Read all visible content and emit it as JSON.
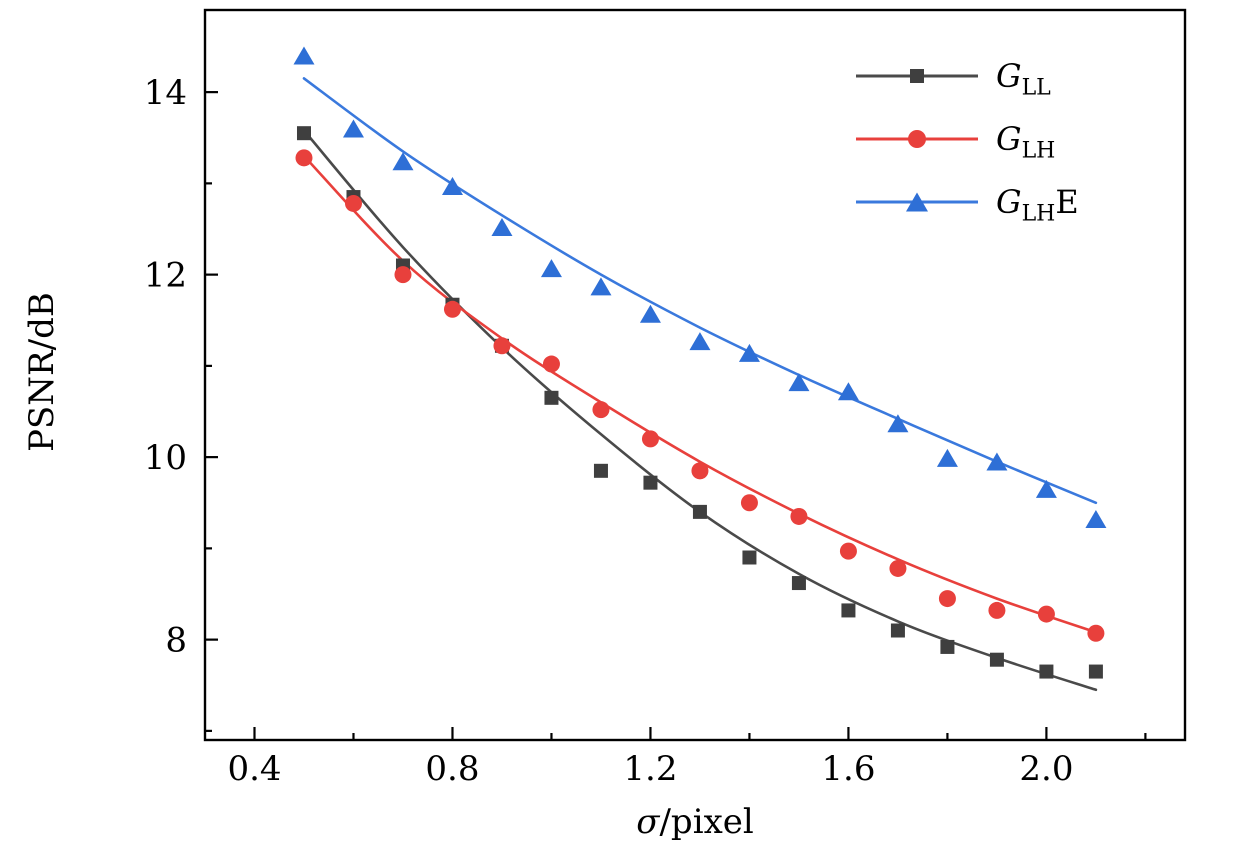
{
  "chart_data": {
    "type": "scatter",
    "title": "",
    "xlabel": "σ/pixel",
    "ylabel": "PSNR/dB",
    "xlabel_parts": {
      "italic": "σ",
      "roman": "/pixel"
    },
    "xlim": [
      0.3,
      2.28
    ],
    "ylim": [
      6.9,
      14.9
    ],
    "grid": false,
    "legend_position": "top-right",
    "axis_color": "#000000",
    "x_major_ticks": [
      0.4,
      0.8,
      1.2,
      1.6,
      2.0
    ],
    "x_major_labels": [
      "0.4",
      "0.8",
      "1.2",
      "1.6",
      "2.0"
    ],
    "x_minor_ticks": [
      0.6,
      1.0,
      1.4,
      1.8,
      2.2
    ],
    "y_major_ticks": [
      8,
      10,
      12,
      14
    ],
    "y_major_labels": [
      "8",
      "10",
      "12",
      "14"
    ],
    "y_minor_ticks": [
      7,
      9,
      11,
      13
    ],
    "series": [
      {
        "name": "GLL",
        "label": {
          "main": "G",
          "sub": "LL",
          "suffix": ""
        },
        "marker": "square",
        "color": "#3f3f3f",
        "line_color": "#4a4a4a",
        "x": [
          0.5,
          0.6,
          0.7,
          0.8,
          0.9,
          1.0,
          1.1,
          1.2,
          1.3,
          1.4,
          1.5,
          1.6,
          1.7,
          1.8,
          1.9,
          2.0,
          2.1
        ],
        "y": [
          13.55,
          12.85,
          12.1,
          11.67,
          11.22,
          10.65,
          9.85,
          9.72,
          9.4,
          8.9,
          8.62,
          8.32,
          8.1,
          7.92,
          7.78,
          7.65,
          7.65
        ],
        "fit_x": [
          0.5,
          0.7,
          0.9,
          1.1,
          1.3,
          1.5,
          1.7,
          1.9,
          2.1
        ],
        "fit_y": [
          13.58,
          12.3,
          11.2,
          10.25,
          9.4,
          8.72,
          8.2,
          7.8,
          7.45
        ]
      },
      {
        "name": "GLH",
        "label": {
          "main": "G",
          "sub": "LH",
          "suffix": ""
        },
        "marker": "circle",
        "color": "#e8403c",
        "line_color": "#e8403c",
        "x": [
          0.5,
          0.6,
          0.7,
          0.8,
          0.9,
          1.0,
          1.1,
          1.2,
          1.3,
          1.4,
          1.5,
          1.6,
          1.7,
          1.8,
          1.9,
          2.0,
          2.1
        ],
        "y": [
          13.28,
          12.78,
          12.0,
          11.62,
          11.22,
          11.02,
          10.52,
          10.2,
          9.85,
          9.5,
          9.35,
          8.97,
          8.78,
          8.45,
          8.32,
          8.28,
          8.07
        ],
        "fit_x": [
          0.5,
          0.7,
          0.9,
          1.1,
          1.3,
          1.5,
          1.7,
          1.9,
          2.1
        ],
        "fit_y": [
          13.3,
          12.15,
          11.3,
          10.6,
          9.95,
          9.38,
          8.88,
          8.45,
          8.08
        ]
      },
      {
        "name": "GLHE",
        "label": {
          "main": "G",
          "sub": "LH",
          "suffix": "E"
        },
        "marker": "triangle",
        "color": "#2e6fd6",
        "line_color": "#3a79dd",
        "x": [
          0.5,
          0.6,
          0.7,
          0.8,
          0.9,
          1.0,
          1.1,
          1.2,
          1.3,
          1.4,
          1.5,
          1.6,
          1.7,
          1.8,
          1.9,
          2.0,
          2.1
        ],
        "y": [
          14.38,
          13.58,
          13.22,
          12.95,
          12.5,
          12.05,
          11.85,
          11.55,
          11.25,
          11.12,
          10.8,
          10.7,
          10.35,
          9.97,
          9.93,
          9.63,
          9.3
        ],
        "fit_x": [
          0.5,
          0.7,
          0.9,
          1.1,
          1.3,
          1.5,
          1.7,
          1.9,
          2.1
        ],
        "fit_y": [
          14.15,
          13.35,
          12.65,
          12.0,
          11.42,
          10.9,
          10.42,
          9.95,
          9.5
        ]
      }
    ]
  }
}
